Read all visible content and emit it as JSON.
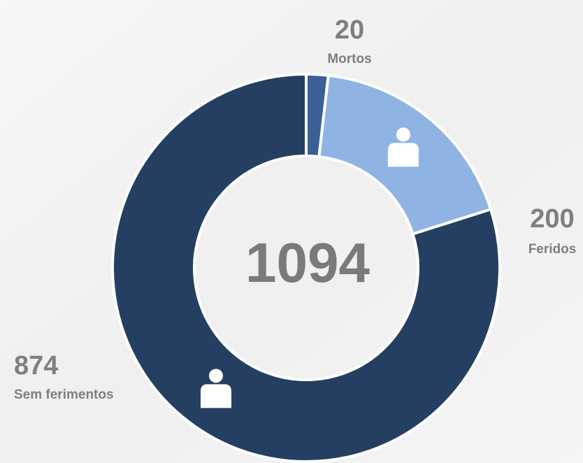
{
  "chart_data": {
    "type": "pie",
    "categories": [
      "Mortos",
      "Feridos",
      "Sem ferimentos"
    ],
    "values": [
      20,
      200,
      874
    ],
    "colors": [
      "#3a6096",
      "#8fb4e3",
      "#243f61"
    ],
    "center_label": 1094
  }
}
